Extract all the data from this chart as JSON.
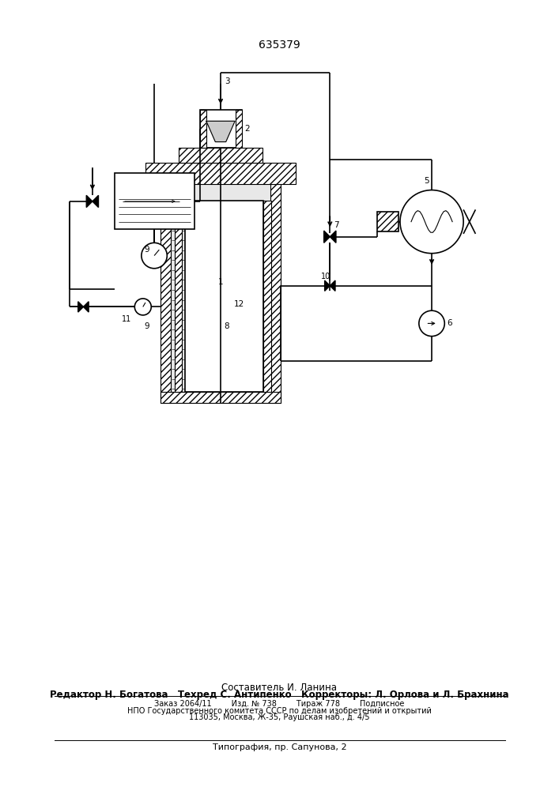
{
  "title": "635379",
  "bg_color": "#ffffff",
  "line_color": "#000000",
  "footer": {
    "line1": "Составитель И. Ланина",
    "line2": "Редактор Н. Богатова   Техред С. Антипенко   Корректоры: Л. Орлова и Л. Брахнина",
    "line3": "Заказ 2064/11        Изд. № 738        Тираж 778        Подписное",
    "line4": "НПО Государственного комитета СССР по делам изобретений и открытий",
    "line5": "113035, Москва, Ж-35, Раушская наб., д. 4/5",
    "line6": "Типография, пр. Сапунова, 2"
  }
}
